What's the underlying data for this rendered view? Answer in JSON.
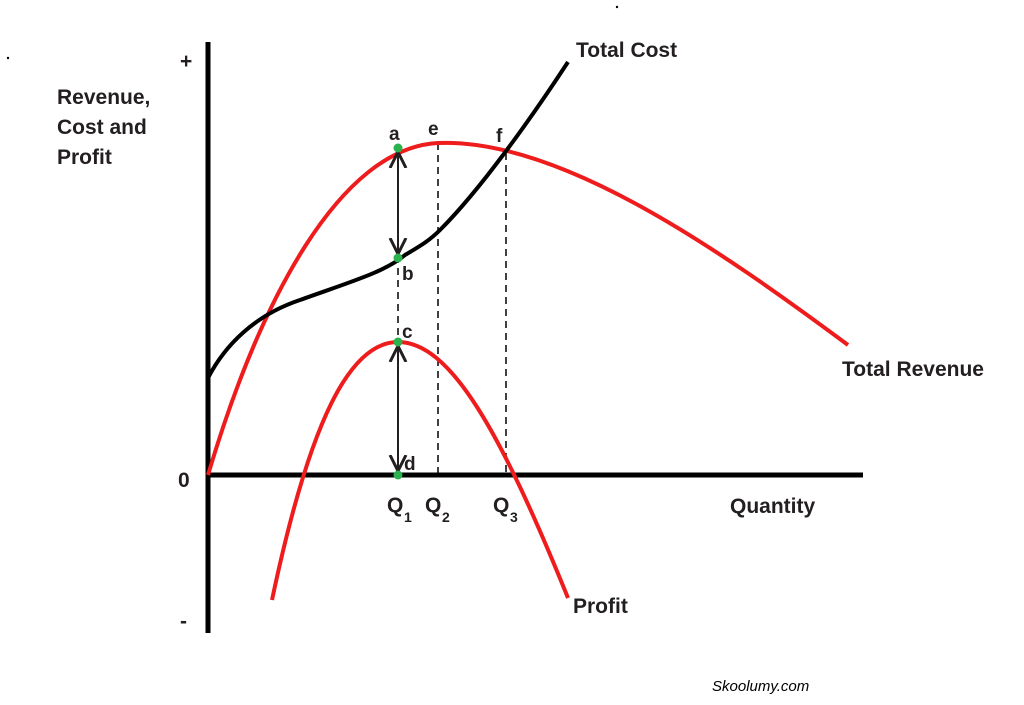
{
  "axis": {
    "plus": "+",
    "minus": "-",
    "zero": "0",
    "y_label": [
      "Revenue,",
      "Cost and",
      "Profit"
    ],
    "x_label": "Quantity"
  },
  "curves": {
    "total_cost": "Total Cost",
    "total_revenue": "Total Revenue",
    "profit": "Profit"
  },
  "points": [
    "a",
    "b",
    "c",
    "d",
    "e",
    "f"
  ],
  "quantities": [
    {
      "main": "Q",
      "sub": "1"
    },
    {
      "main": "Q",
      "sub": "2"
    },
    {
      "main": "Q",
      "sub": "3"
    }
  ],
  "watermark": "Skoolumy.com"
}
